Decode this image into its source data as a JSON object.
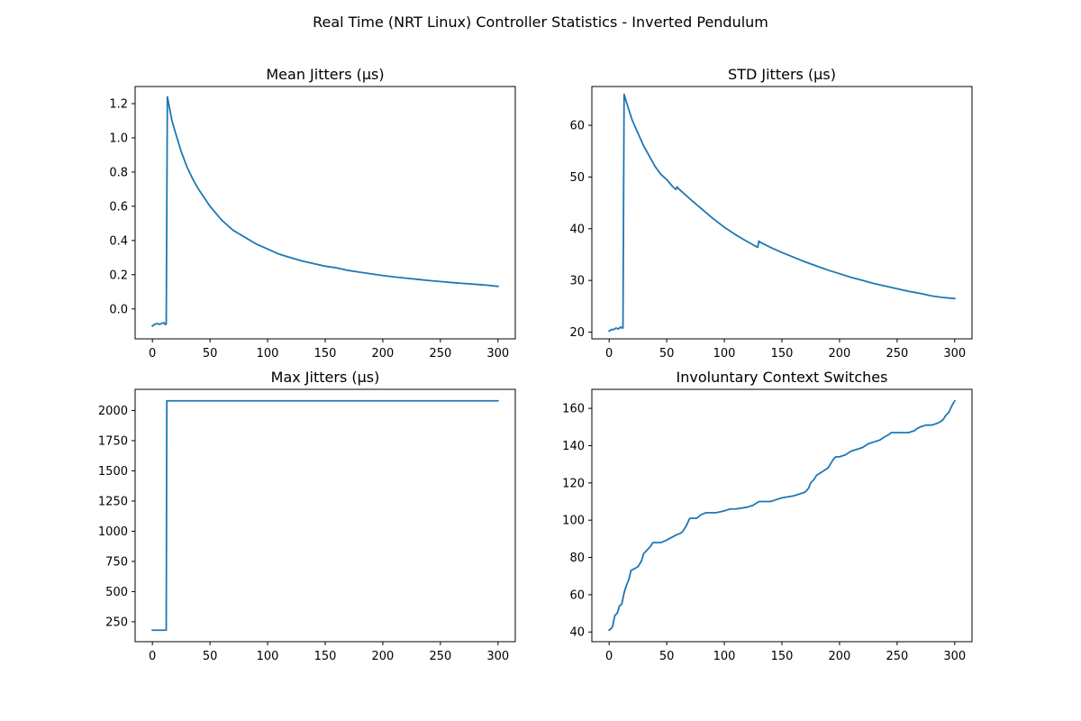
{
  "figure": {
    "suptitle": "Real Time (NRT Linux) Controller Statistics - Inverted Pendulum",
    "line_color": "#1f77b4"
  },
  "chart_data": [
    {
      "type": "line",
      "title": "Mean Jitters (µs)",
      "xlabel": "",
      "ylabel": "",
      "xlim": [
        -15,
        315
      ],
      "ylim": [
        -0.175,
        1.3
      ],
      "xticks": [
        0,
        50,
        100,
        150,
        200,
        250,
        300
      ],
      "xtick_labels": [
        "0",
        "50",
        "100",
        "150",
        "200",
        "250",
        "300"
      ],
      "yticks": [
        0.0,
        0.2,
        0.4,
        0.6,
        0.8,
        1.0,
        1.2
      ],
      "ytick_labels": [
        "0.0",
        "0.2",
        "0.4",
        "0.6",
        "0.8",
        "1.0",
        "1.2"
      ],
      "grid": false,
      "series": [
        {
          "x": [
            0,
            2,
            4,
            6,
            8,
            10,
            11,
            12,
            13,
            15,
            17,
            20,
            25,
            30,
            35,
            40,
            45,
            50,
            55,
            60,
            65,
            70,
            75,
            80,
            90,
            100,
            110,
            120,
            130,
            140,
            150,
            160,
            170,
            180,
            190,
            200,
            210,
            220,
            230,
            240,
            250,
            260,
            270,
            280,
            290,
            300
          ],
          "y": [
            -0.1,
            -0.09,
            -0.085,
            -0.09,
            -0.085,
            -0.08,
            -0.09,
            -0.09,
            1.24,
            1.17,
            1.1,
            1.03,
            0.92,
            0.83,
            0.76,
            0.7,
            0.65,
            0.6,
            0.56,
            0.52,
            0.49,
            0.46,
            0.44,
            0.42,
            0.38,
            0.35,
            0.32,
            0.3,
            0.28,
            0.265,
            0.25,
            0.24,
            0.225,
            0.215,
            0.205,
            0.195,
            0.187,
            0.18,
            0.173,
            0.166,
            0.16,
            0.154,
            0.149,
            0.144,
            0.139,
            0.132
          ]
        }
      ]
    },
    {
      "type": "line",
      "title": "STD Jitters (µs)",
      "xlabel": "",
      "ylabel": "",
      "xlim": [
        -15,
        315
      ],
      "ylim": [
        18.7,
        67.5
      ],
      "xticks": [
        0,
        50,
        100,
        150,
        200,
        250,
        300
      ],
      "xtick_labels": [
        "0",
        "50",
        "100",
        "150",
        "200",
        "250",
        "300"
      ],
      "yticks": [
        20,
        30,
        40,
        50,
        60
      ],
      "ytick_labels": [
        "20",
        "30",
        "40",
        "50",
        "60"
      ],
      "grid": false,
      "series": [
        {
          "x": [
            0,
            2,
            4,
            6,
            8,
            10,
            11,
            12,
            13,
            15,
            20,
            25,
            30,
            35,
            40,
            45,
            50,
            55,
            58,
            59,
            60,
            65,
            70,
            80,
            90,
            100,
            110,
            120,
            129,
            130,
            131,
            140,
            150,
            160,
            170,
            180,
            190,
            200,
            210,
            220,
            230,
            240,
            250,
            260,
            270,
            280,
            290,
            300
          ],
          "y": [
            20.2,
            20.5,
            20.5,
            20.8,
            20.6,
            21.0,
            20.8,
            20.8,
            66.0,
            64.5,
            61.0,
            58.5,
            56.0,
            54.0,
            52.0,
            50.5,
            49.5,
            48.2,
            47.6,
            48.1,
            47.8,
            46.8,
            45.8,
            43.9,
            42.0,
            40.3,
            38.8,
            37.5,
            36.4,
            37.6,
            37.4,
            36.4,
            35.4,
            34.5,
            33.6,
            32.8,
            32.0,
            31.3,
            30.6,
            30.0,
            29.4,
            28.9,
            28.4,
            27.9,
            27.5,
            27.0,
            26.7,
            26.5
          ]
        }
      ]
    },
    {
      "type": "line",
      "title": "Max Jitters (µs)",
      "xlabel": "",
      "ylabel": "",
      "xlim": [
        -15,
        315
      ],
      "ylim": [
        85,
        2175
      ],
      "xticks": [
        0,
        50,
        100,
        150,
        200,
        250,
        300
      ],
      "xtick_labels": [
        "0",
        "50",
        "100",
        "150",
        "200",
        "250",
        "300"
      ],
      "yticks": [
        250,
        500,
        750,
        1000,
        1250,
        1500,
        1750,
        2000
      ],
      "ytick_labels": [
        "250",
        "500",
        "750",
        "1000",
        "1250",
        "1500",
        "1750",
        "2000"
      ],
      "grid": false,
      "series": [
        {
          "x": [
            0,
            12,
            12.5,
            300
          ],
          "y": [
            180,
            180,
            2080,
            2080
          ]
        }
      ]
    },
    {
      "type": "line",
      "title": "Involuntary Context Switches",
      "xlabel": "",
      "ylabel": "",
      "xlim": [
        -15,
        315
      ],
      "ylim": [
        34.8,
        170.2
      ],
      "xticks": [
        0,
        50,
        100,
        150,
        200,
        250,
        300
      ],
      "xtick_labels": [
        "0",
        "50",
        "100",
        "150",
        "200",
        "250",
        "300"
      ],
      "yticks": [
        40,
        60,
        80,
        100,
        120,
        140,
        160
      ],
      "ytick_labels": [
        "40",
        "60",
        "80",
        "100",
        "120",
        "140",
        "160"
      ],
      "grid": false,
      "series": [
        {
          "x": [
            0,
            2,
            3,
            5,
            7,
            9,
            11,
            13,
            15,
            17,
            19,
            22,
            25,
            28,
            30,
            33,
            36,
            38,
            41,
            45,
            49,
            52,
            55,
            58,
            62,
            64,
            67,
            70,
            73,
            76,
            80,
            84,
            88,
            93,
            100,
            105,
            110,
            120,
            125,
            130,
            140,
            145,
            150,
            160,
            165,
            170,
            173,
            175,
            178,
            180,
            185,
            190,
            193,
            195,
            197,
            200,
            205,
            210,
            215,
            220,
            225,
            230,
            235,
            240,
            243,
            245,
            250,
            255,
            260,
            265,
            267,
            270,
            275,
            280,
            285,
            288,
            290,
            292,
            295,
            298,
            300
          ],
          "y": [
            41,
            42,
            43,
            49,
            50,
            54,
            55,
            61,
            65,
            68,
            73,
            74,
            75,
            78,
            82,
            84,
            86,
            88,
            88,
            88,
            89,
            90,
            91,
            92,
            93,
            94,
            97,
            101,
            101,
            101,
            103,
            104,
            104,
            104,
            105,
            106,
            106,
            107,
            108,
            110,
            110,
            111,
            112,
            113,
            114,
            115,
            117,
            120,
            122,
            124,
            126,
            128,
            131,
            133,
            134,
            134,
            135,
            137,
            138,
            139,
            141,
            142,
            143,
            145,
            146,
            147,
            147,
            147,
            147,
            148,
            149,
            150,
            151,
            151,
            152,
            153,
            154,
            156,
            158,
            162,
            164
          ]
        }
      ]
    }
  ]
}
